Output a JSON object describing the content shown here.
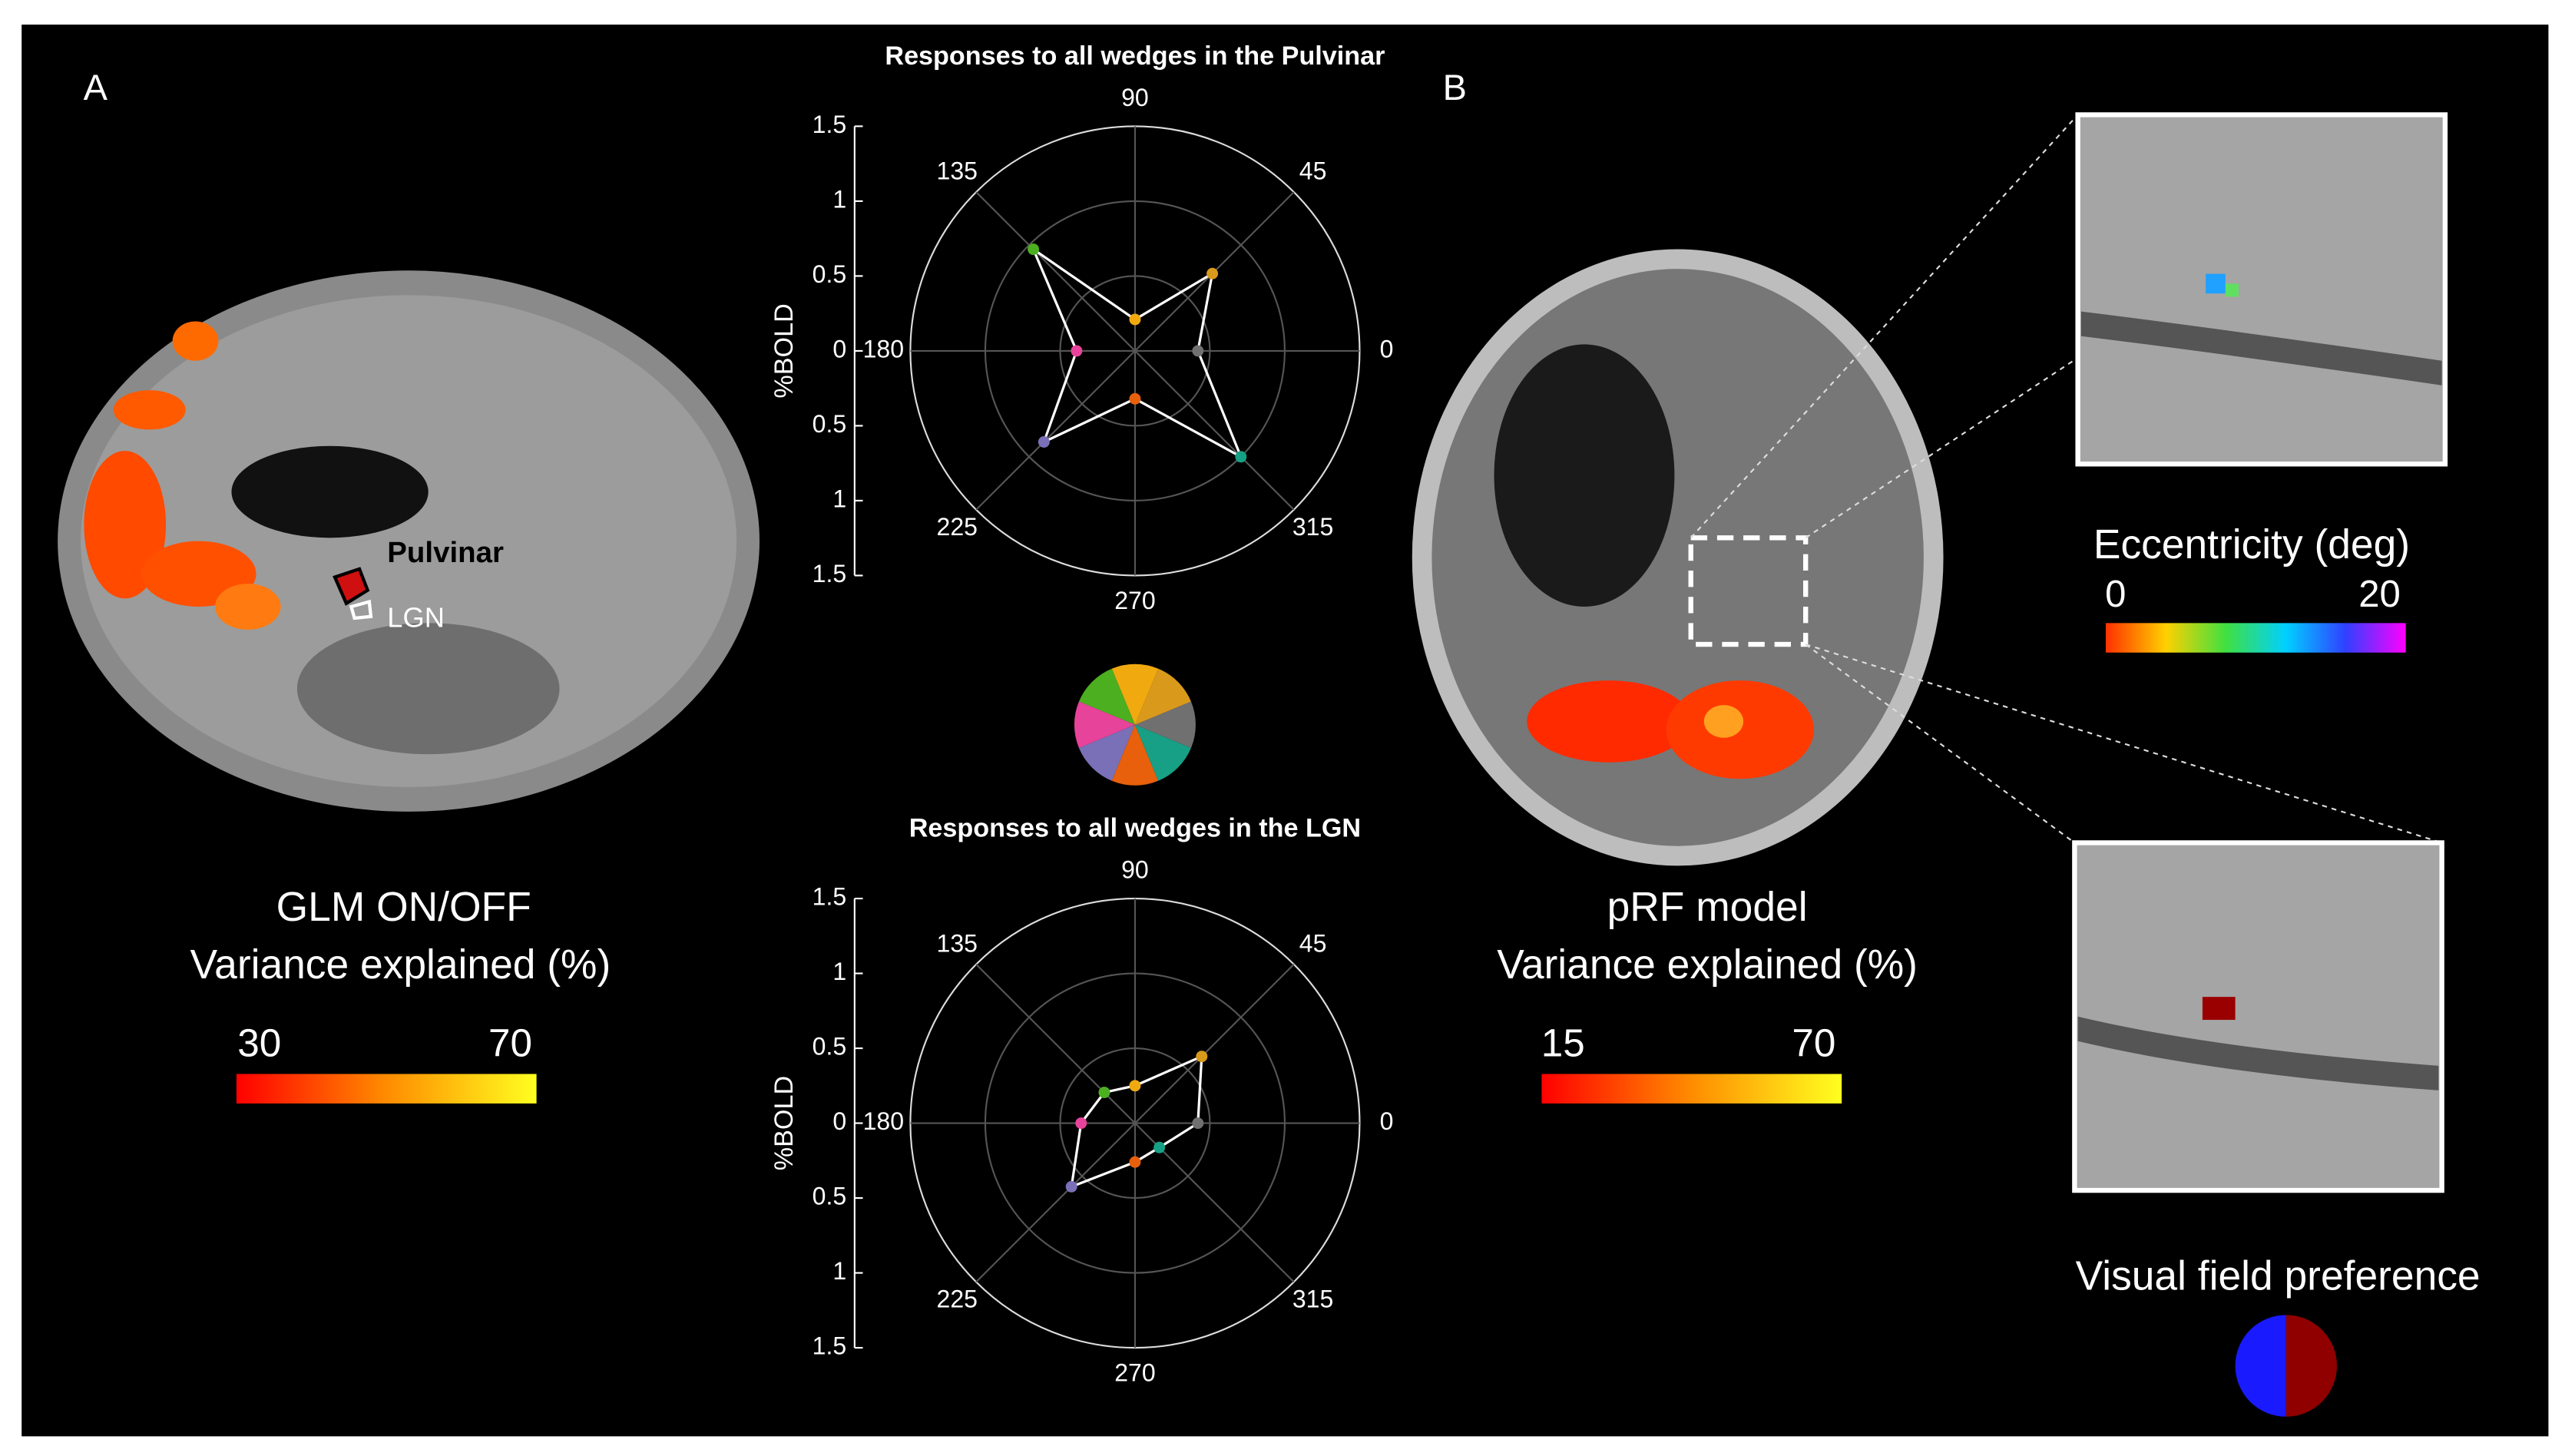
{
  "panel_labels": [
    "A",
    "B"
  ],
  "left_panel": {
    "roi_labels": [
      "Pulvinar",
      "LGN"
    ],
    "caption": [
      "GLM ON/OFF",
      "Variance explained (%)"
    ],
    "colorbar": {
      "min": 30,
      "max": 70
    }
  },
  "right_panel": {
    "caption": [
      "pRF model",
      "Variance explained (%)"
    ],
    "colorbar": {
      "min": 15,
      "max": 70
    },
    "eccentricity": {
      "title": "Eccentricity (deg)",
      "min": 0,
      "max": 20
    },
    "visual_field": {
      "title": "Visual field preference"
    }
  },
  "chart_data": [
    {
      "type": "polar",
      "title": "Responses to all wedges in the Pulvinar",
      "ylabel": "%BOLD",
      "theta": [
        0,
        45,
        90,
        135,
        180,
        225,
        270,
        315
      ],
      "ylim": [
        -1.5,
        1.5
      ],
      "yticks": [
        1.5,
        1,
        0.5,
        0,
        {
          "value": -0.5,
          "label": "0.5"
        },
        {
          "value": -1,
          "label": "1"
        },
        {
          "value": -1.5,
          "label": "1.5"
        }
      ],
      "grid": true,
      "line_color": "#ffffff",
      "series": [
        {
          "values": [
            0.42,
            0.73,
            0.21,
            0.96,
            0.39,
            0.86,
            0.32,
            1.0
          ],
          "colors": [
            "#707070",
            "#d99a1c",
            "#f0aa10",
            "#4caf20",
            "#e8439a",
            "#7a70b8",
            "#e8600c",
            "#17a085"
          ]
        }
      ]
    },
    {
      "type": "polar",
      "title": "Responses to all wedges in the LGN",
      "ylabel": "%BOLD",
      "theta": [
        0,
        45,
        90,
        135,
        180,
        225,
        270,
        315
      ],
      "ylim": [
        -1.5,
        1.5
      ],
      "yticks": [
        1.5,
        1,
        0.5,
        0,
        {
          "value": -0.5,
          "label": "0.5"
        },
        {
          "value": -1,
          "label": "1"
        },
        {
          "value": -1.5,
          "label": "1.5"
        }
      ],
      "grid": true,
      "line_color": "#ffffff",
      "series": [
        {
          "values": [
            0.42,
            0.63,
            0.25,
            0.29,
            0.36,
            0.6,
            0.26,
            0.23
          ],
          "colors": [
            "#707070",
            "#d99a1c",
            "#f0aa10",
            "#4caf20",
            "#e8439a",
            "#7a70b8",
            "#e8600c",
            "#17a085"
          ]
        }
      ]
    }
  ]
}
